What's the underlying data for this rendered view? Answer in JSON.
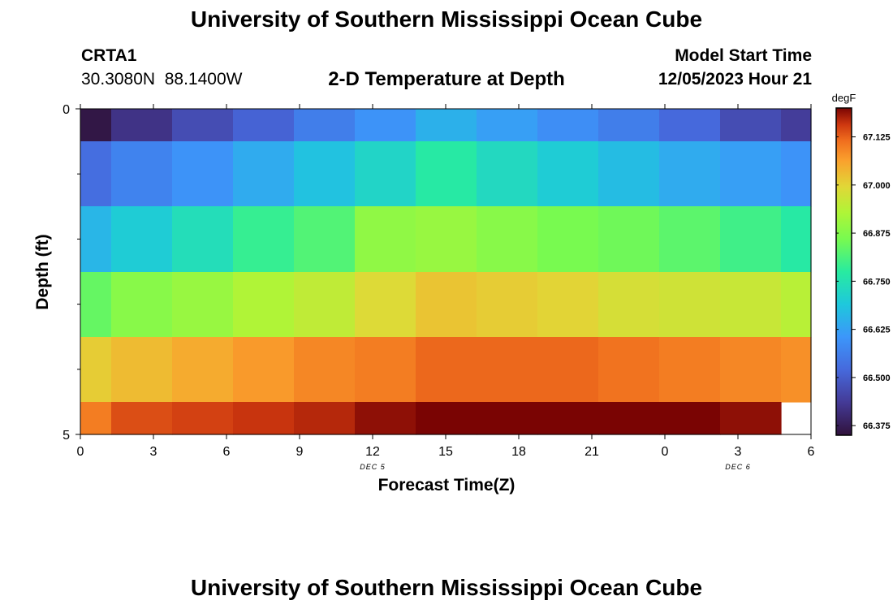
{
  "header": {
    "title": "University of Southern Mississippi Ocean Cube",
    "station_id": "CRTA1",
    "coords": "30.3080N  88.1400W",
    "model_start_label": "Model Start Time",
    "model_start_value": "12/05/2023 Hour 21"
  },
  "footer": {
    "title": "University of Southern Mississippi Ocean Cube"
  },
  "chart_data": {
    "type": "heatmap",
    "title": "2-D Temperature at Depth",
    "xlabel": "Forecast Time(Z)",
    "ylabel": "Depth (ft)",
    "x_tick_labels": [
      "0",
      "3",
      "6",
      "9",
      "12",
      "15",
      "18",
      "21",
      "0",
      "3",
      "6"
    ],
    "x_range_hours": [
      0,
      30
    ],
    "date_labels": [
      {
        "text": "DEC 5",
        "hour": 12
      },
      {
        "text": "DEC 6",
        "hour": 27
      }
    ],
    "y_tick_labels": [
      "0",
      "5"
    ],
    "ylim": [
      0,
      5
    ],
    "y_minor_ticks": [
      1,
      2,
      3,
      4
    ],
    "column_hour_edges": [
      0,
      1.25,
      3.75,
      6.25,
      8.75,
      11.25,
      13.75,
      16.25,
      18.75,
      21.25,
      23.75,
      26.25,
      28.75,
      30
    ],
    "depth_edges_ft": [
      0,
      0.5,
      1.5,
      2.5,
      3.5,
      4.5,
      5
    ],
    "colorbar": {
      "unit": "degF",
      "min": 66.35,
      "max": 67.2,
      "ticks": [
        66.375,
        66.5,
        66.625,
        66.75,
        66.875,
        67.0,
        67.125
      ],
      "tick_labels": [
        "66.375",
        "66.500",
        "66.625",
        "66.750",
        "66.875",
        "67.000",
        "67.125"
      ]
    },
    "values": [
      [
        66.36,
        66.42,
        66.47,
        66.51,
        66.56,
        66.6,
        66.65,
        66.62,
        66.59,
        66.56,
        66.52,
        66.47,
        66.44
      ],
      [
        66.53,
        66.57,
        66.6,
        66.64,
        66.68,
        66.72,
        66.77,
        66.73,
        66.7,
        66.67,
        66.64,
        66.62,
        66.6
      ],
      [
        66.66,
        66.7,
        66.74,
        66.79,
        66.82,
        66.89,
        66.9,
        66.88,
        66.86,
        66.85,
        66.83,
        66.8,
        66.77
      ],
      [
        66.84,
        66.88,
        66.9,
        66.93,
        66.95,
        66.99,
        67.02,
        67.01,
        67.0,
        66.98,
        66.97,
        66.96,
        66.94
      ],
      [
        67.01,
        67.03,
        67.05,
        67.07,
        67.09,
        67.1,
        67.12,
        67.12,
        67.12,
        67.11,
        67.1,
        67.09,
        67.08
      ],
      [
        67.1,
        67.14,
        67.15,
        67.16,
        67.17,
        67.19,
        67.21,
        67.21,
        67.21,
        67.21,
        67.2,
        67.19,
        null
      ]
    ]
  }
}
